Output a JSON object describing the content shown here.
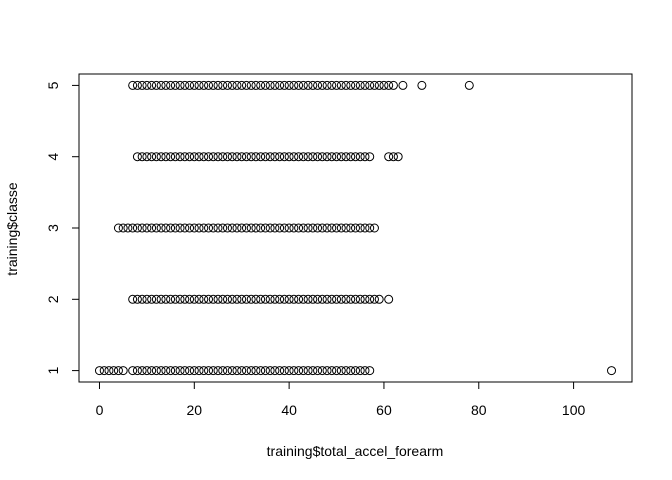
{
  "chart_data": {
    "type": "scatter",
    "title": "",
    "xlabel": "training$total_accel_forearm",
    "ylabel": "training$classe",
    "xlim": [
      -4.32,
      112.32
    ],
    "ylim": [
      0.84,
      5.16
    ],
    "xticks": [
      0,
      20,
      40,
      60,
      80,
      100
    ],
    "yticks": [
      1,
      2,
      3,
      4,
      5
    ],
    "xtick_labels": [
      "0",
      "20",
      "40",
      "60",
      "80",
      "100"
    ],
    "ytick_labels": [
      "1",
      "2",
      "3",
      "4",
      "5"
    ],
    "grid": false,
    "legend": "none",
    "marker": "open-circle",
    "marker_color": "#000000",
    "rows": [
      {
        "y": 1,
        "x": [
          0,
          1,
          2,
          3,
          4,
          5,
          7,
          8,
          9,
          10,
          11,
          12,
          13,
          14,
          15,
          16,
          17,
          18,
          19,
          20,
          21,
          22,
          23,
          24,
          25,
          26,
          27,
          28,
          29,
          30,
          31,
          32,
          33,
          34,
          35,
          36,
          37,
          38,
          39,
          40,
          41,
          42,
          43,
          44,
          45,
          46,
          47,
          48,
          49,
          50,
          51,
          52,
          53,
          54,
          55,
          56,
          57,
          108
        ]
      },
      {
        "y": 2,
        "x": [
          7,
          8,
          9,
          10,
          11,
          12,
          13,
          14,
          15,
          16,
          17,
          18,
          19,
          20,
          21,
          22,
          23,
          24,
          25,
          26,
          27,
          28,
          29,
          30,
          31,
          32,
          33,
          34,
          35,
          36,
          37,
          38,
          39,
          40,
          41,
          42,
          43,
          44,
          45,
          46,
          47,
          48,
          49,
          50,
          51,
          52,
          53,
          54,
          55,
          56,
          57,
          58,
          59,
          61
        ]
      },
      {
        "y": 3,
        "x": [
          4,
          5,
          6,
          7,
          8,
          9,
          10,
          11,
          12,
          13,
          14,
          15,
          16,
          17,
          18,
          19,
          20,
          21,
          22,
          23,
          24,
          25,
          26,
          27,
          28,
          29,
          30,
          31,
          32,
          33,
          34,
          35,
          36,
          37,
          38,
          39,
          40,
          41,
          42,
          43,
          44,
          45,
          46,
          47,
          48,
          49,
          50,
          51,
          52,
          53,
          54,
          55,
          56,
          57,
          58
        ]
      },
      {
        "y": 4,
        "x": [
          8,
          9,
          10,
          11,
          12,
          13,
          14,
          15,
          16,
          17,
          18,
          19,
          20,
          21,
          22,
          23,
          24,
          25,
          26,
          27,
          28,
          29,
          30,
          31,
          32,
          33,
          34,
          35,
          36,
          37,
          38,
          39,
          40,
          41,
          42,
          43,
          44,
          45,
          46,
          47,
          48,
          49,
          50,
          51,
          52,
          53,
          54,
          55,
          56,
          57,
          61,
          62,
          63
        ]
      },
      {
        "y": 5,
        "x": [
          7,
          8,
          9,
          10,
          11,
          12,
          13,
          14,
          15,
          16,
          17,
          18,
          19,
          20,
          21,
          22,
          23,
          24,
          25,
          26,
          27,
          28,
          29,
          30,
          31,
          32,
          33,
          34,
          35,
          36,
          37,
          38,
          39,
          40,
          41,
          42,
          43,
          44,
          45,
          46,
          47,
          48,
          49,
          50,
          51,
          52,
          53,
          54,
          55,
          56,
          57,
          58,
          59,
          60,
          61,
          62,
          64,
          68,
          78
        ]
      }
    ]
  }
}
